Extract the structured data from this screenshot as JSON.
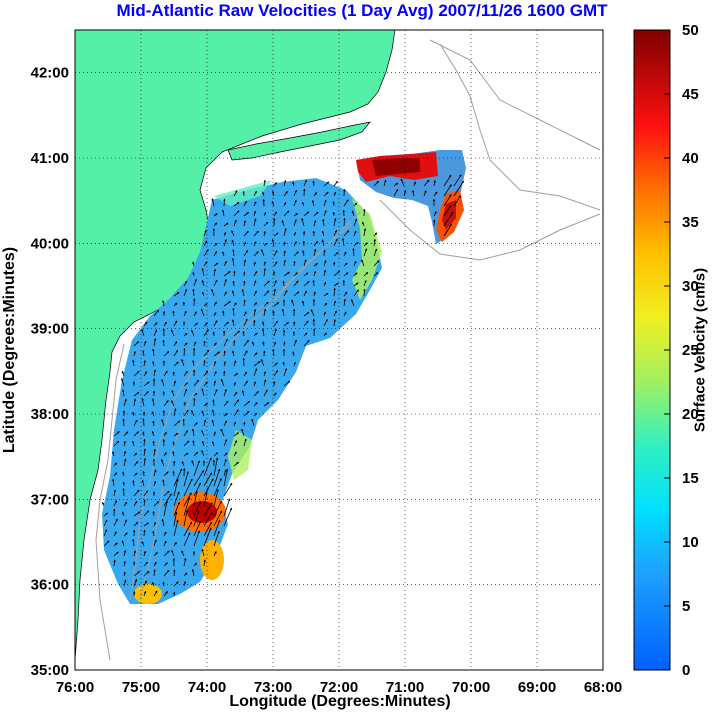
{
  "title": "Mid-Atlantic Raw Velocities (1 Day Avg) 2007/11/26 1600 GMT",
  "axes": {
    "xlabel": "Longitude (Degrees:Minutes)",
    "ylabel": "Latitude (Degrees:Minutes)",
    "x_ticks": [
      "76:00",
      "75:00",
      "74:00",
      "73:00",
      "72:00",
      "71:00",
      "70:00",
      "69:00",
      "68:00"
    ],
    "y_ticks": [
      "35:00",
      "36:00",
      "37:00",
      "38:00",
      "39:00",
      "40:00",
      "41:00",
      "42:00"
    ],
    "x_range_deg_west": [
      76,
      68
    ],
    "y_range_deg_north": [
      35,
      42.5
    ],
    "grid": "dotted"
  },
  "colorbar": {
    "label": "Surface Velocity (cm/s)",
    "ticks": [
      "0",
      "5",
      "10",
      "15",
      "20",
      "25",
      "30",
      "35",
      "40",
      "45",
      "50"
    ],
    "range": [
      0,
      50
    ],
    "colormap": "jet"
  },
  "colors": {
    "title": "#0000ff",
    "land": "#55f0a8",
    "ocean_background": "#ffffff",
    "field_base": "#3aa8ee",
    "bathymetry_contour": "#a0a0a0",
    "arrow": "#000000"
  },
  "field_regions": [
    {
      "name": "main-shelf",
      "speed_cm_s": 8
    },
    {
      "name": "block-island",
      "speed_cm_s": 6
    },
    {
      "name": "hotspot-south",
      "speed_cm_s": 45
    },
    {
      "name": "hotspot-north",
      "speed_cm_s": 40
    },
    {
      "name": "hotspot-east",
      "speed_cm_s": 38
    }
  ]
}
